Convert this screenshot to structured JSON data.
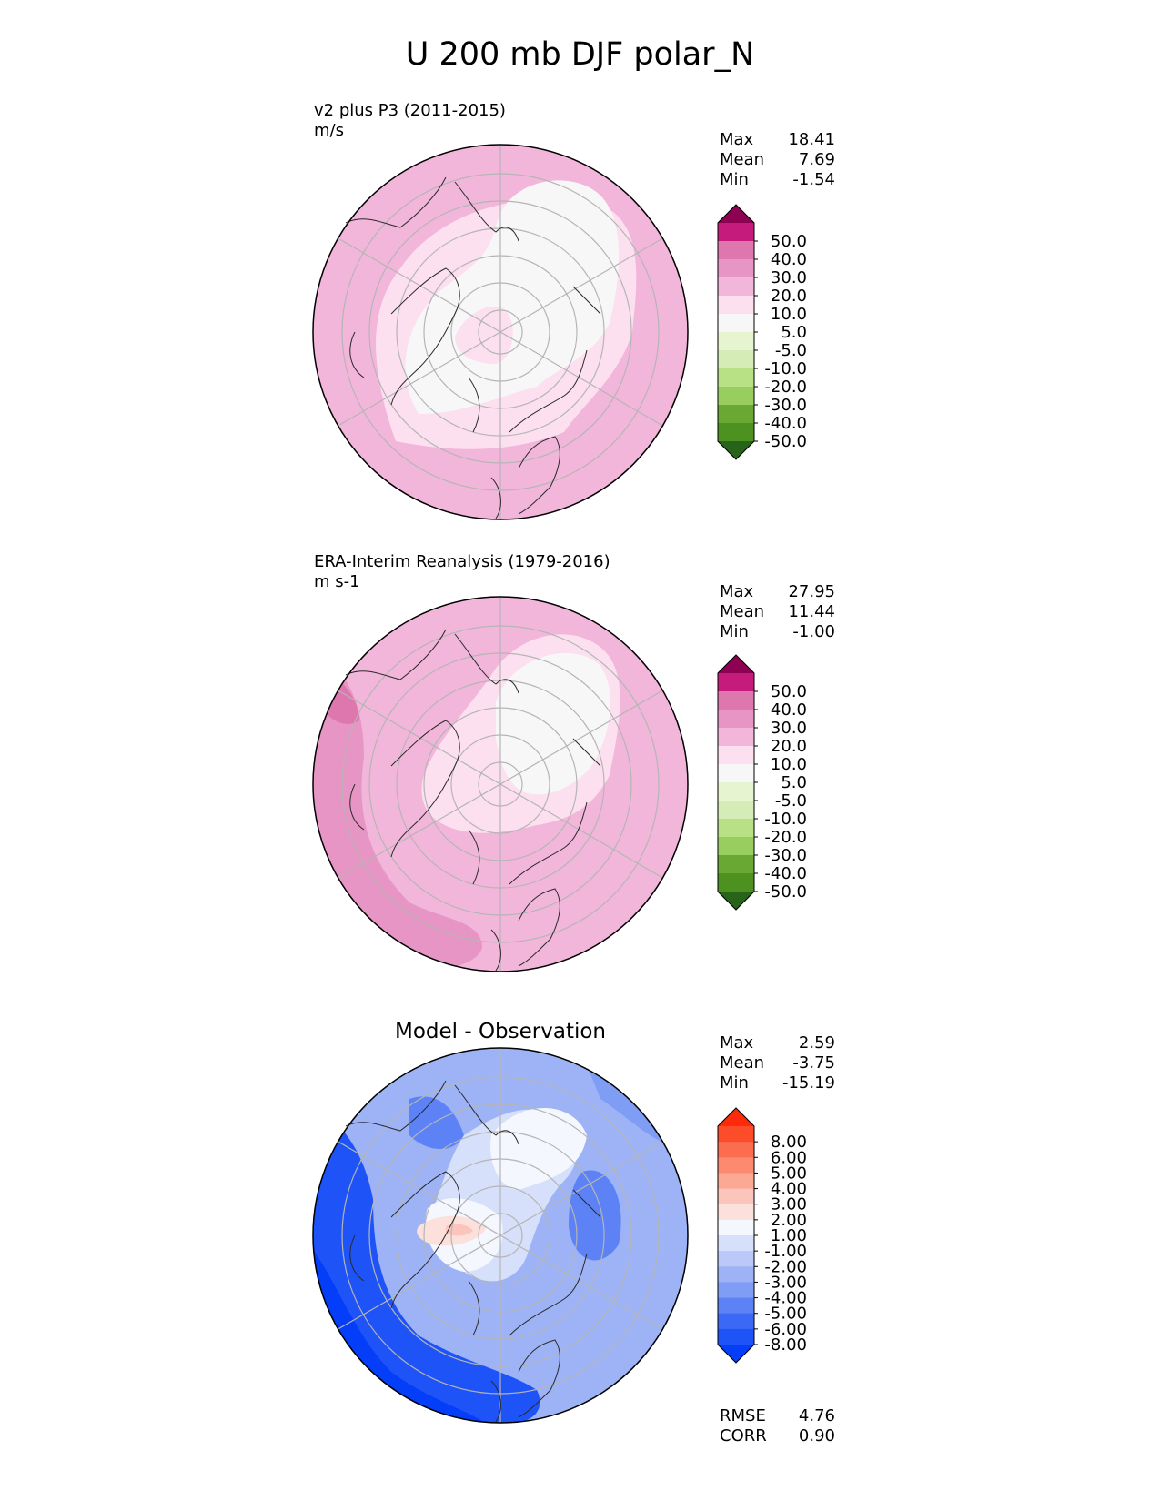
{
  "title": "U 200 mb DJF polar_N",
  "colors": {
    "pink": [
      "#f7f7f7",
      "#fde0ef",
      "#f1b6da",
      "#e795c4",
      "#de77ae",
      "#c51b7d",
      "#8e0152"
    ],
    "green": [
      "#276419",
      "#4d9221",
      "#6aa834",
      "#97ce5f",
      "#b8e186",
      "#d5ecb6",
      "#e6f5d0"
    ],
    "blue": [
      "#053ef9",
      "#1e53f8",
      "#3b69f6",
      "#5c82f5",
      "#809df5",
      "#9db3f6",
      "#bac9f8",
      "#d7e0fb",
      "#f5f7fe"
    ],
    "red": [
      "#fbe0dc",
      "#fbc5bb",
      "#fba894",
      "#fb8a70",
      "#fb6d4e",
      "#fc4c2a",
      "#fd2a0b"
    ],
    "grid": "#b5b5b5",
    "coast": "#2a2a2a"
  },
  "panels": [
    {
      "id": "model",
      "heading": "v2 plus P3 (2011-2015)",
      "units": "m/s",
      "stats": [
        {
          "label": "Max",
          "value": "18.41"
        },
        {
          "label": "Mean",
          "value": "7.69"
        },
        {
          "label": "Min",
          "value": "-1.54"
        }
      ],
      "colorbar_ticks": [
        "50.0",
        "40.0",
        "30.0",
        "20.0",
        "10.0",
        "5.0",
        "-5.0",
        "-10.0",
        "-20.0",
        "-30.0",
        "-40.0",
        "-50.0"
      ]
    },
    {
      "id": "obs",
      "heading": "ERA-Interim Reanalysis (1979-2016)",
      "units": "m s-1",
      "stats": [
        {
          "label": "Max",
          "value": "27.95"
        },
        {
          "label": "Mean",
          "value": "11.44"
        },
        {
          "label": "Min",
          "value": "-1.00"
        }
      ],
      "colorbar_ticks": [
        "50.0",
        "40.0",
        "30.0",
        "20.0",
        "10.0",
        "5.0",
        "-5.0",
        "-10.0",
        "-20.0",
        "-30.0",
        "-40.0",
        "-50.0"
      ]
    },
    {
      "id": "diff",
      "heading": "Model - Observation",
      "stats": [
        {
          "label": "Max",
          "value": "2.59"
        },
        {
          "label": "Mean",
          "value": "-3.75"
        },
        {
          "label": "Min",
          "value": "-15.19"
        }
      ],
      "colorbar_ticks": [
        "8.00",
        "6.00",
        "5.00",
        "4.00",
        "3.00",
        "2.00",
        "1.00",
        "-1.00",
        "-2.00",
        "-3.00",
        "-4.00",
        "-5.00",
        "-6.00",
        "-8.00"
      ],
      "metrics": [
        {
          "label": "RMSE",
          "value": "4.76"
        },
        {
          "label": "CORR",
          "value": "0.90"
        }
      ]
    }
  ]
}
